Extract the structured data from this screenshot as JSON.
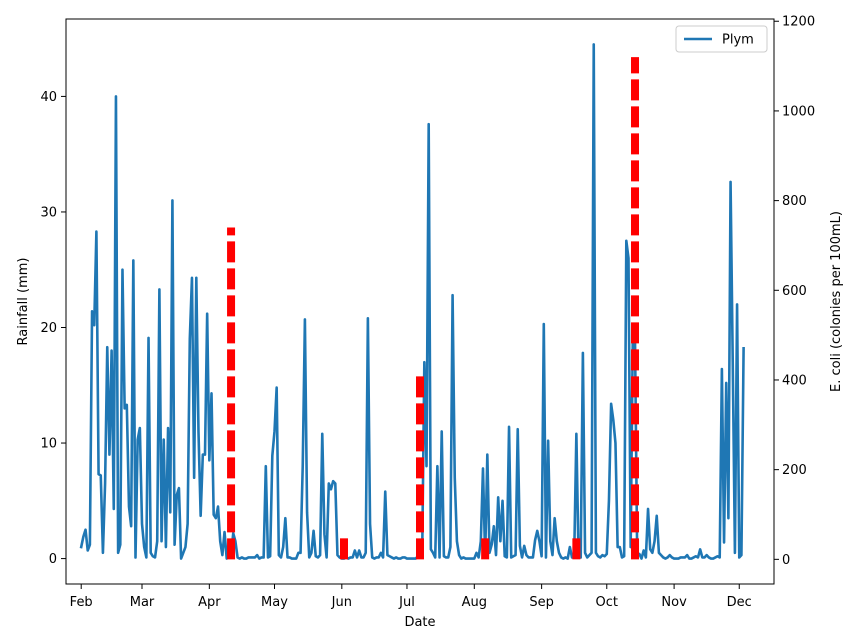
{
  "chart_data": {
    "type": "line",
    "xlabel": "Date",
    "ylabel_left": "Rainfall (mm)",
    "ylabel_right": "E. coli (colonies per 100mL)",
    "ylim_left": [
      -2.2,
      46.7
    ],
    "ylim_right": [
      -55,
      1205
    ],
    "x_range_days": [
      -7,
      319
    ],
    "month_ticks": [
      {
        "label": "Feb",
        "day": 0
      },
      {
        "label": "Mar",
        "day": 28
      },
      {
        "label": "Apr",
        "day": 59
      },
      {
        "label": "May",
        "day": 89
      },
      {
        "label": "Jun",
        "day": 120
      },
      {
        "label": "Jul",
        "day": 150
      },
      {
        "label": "Aug",
        "day": 181
      },
      {
        "label": "Sep",
        "day": 212
      },
      {
        "label": "Oct",
        "day": 242
      },
      {
        "label": "Nov",
        "day": 273
      },
      {
        "label": "Dec",
        "day": 303
      }
    ],
    "y_ticks_left": [
      0,
      10,
      20,
      30,
      40
    ],
    "y_ticks_right": [
      0,
      200,
      400,
      600,
      800,
      1000,
      1200
    ],
    "legend": {
      "position": "top-right",
      "entries": [
        "Plym"
      ]
    },
    "series": [
      {
        "name": "Plym",
        "color": "#1f77b4",
        "axis": "left",
        "points": [
          [
            0,
            1
          ],
          [
            1,
            1.9
          ],
          [
            2,
            2.5
          ],
          [
            3,
            0.7
          ],
          [
            4,
            1.2
          ],
          [
            5,
            21.4
          ],
          [
            6,
            20.2
          ],
          [
            7,
            28.3
          ],
          [
            8,
            7.3
          ],
          [
            9,
            7.2
          ],
          [
            10,
            0.5
          ],
          [
            11,
            6.5
          ],
          [
            12,
            18.3
          ],
          [
            13,
            9
          ],
          [
            14,
            18
          ],
          [
            15,
            4.3
          ],
          [
            16,
            40
          ],
          [
            17,
            0.5
          ],
          [
            18,
            1.2
          ],
          [
            19,
            25
          ],
          [
            20,
            13
          ],
          [
            21,
            13.3
          ],
          [
            22,
            4.5
          ],
          [
            23,
            2.8
          ],
          [
            24,
            25.8
          ],
          [
            25,
            0.1
          ],
          [
            26,
            10.3
          ],
          [
            27,
            11.3
          ],
          [
            28,
            3
          ],
          [
            29,
            1
          ],
          [
            30,
            0.1
          ],
          [
            31,
            19.1
          ],
          [
            32,
            0.5
          ],
          [
            33,
            0.2
          ],
          [
            34,
            0.1
          ],
          [
            35,
            1.5
          ],
          [
            36,
            23.3
          ],
          [
            37,
            1.5
          ],
          [
            38,
            10.3
          ],
          [
            39,
            1
          ],
          [
            40,
            11.3
          ],
          [
            41,
            4
          ],
          [
            42,
            31
          ],
          [
            43,
            1.2
          ],
          [
            44,
            5.5
          ],
          [
            45,
            6.1
          ],
          [
            46,
            0
          ],
          [
            47,
            0.5
          ],
          [
            48,
            1
          ],
          [
            49,
            3
          ],
          [
            50,
            19
          ],
          [
            51,
            24.3
          ],
          [
            52,
            7
          ],
          [
            53,
            24.3
          ],
          [
            54,
            11
          ],
          [
            55,
            3.7
          ],
          [
            56,
            9
          ],
          [
            57,
            9
          ],
          [
            58,
            21.2
          ],
          [
            59,
            8.5
          ],
          [
            60,
            14.3
          ],
          [
            61,
            3.8
          ],
          [
            62,
            3.5
          ],
          [
            63,
            4.5
          ],
          [
            64,
            1.5
          ],
          [
            65,
            0.3
          ],
          [
            66,
            2.3
          ],
          [
            67,
            0
          ],
          [
            68,
            1.5
          ],
          [
            69,
            0.2
          ],
          [
            70,
            2.2
          ],
          [
            71,
            1.5
          ],
          [
            72,
            0.1
          ],
          [
            73,
            0
          ],
          [
            74,
            0.1
          ],
          [
            75,
            0
          ],
          [
            76,
            0
          ],
          [
            77,
            0.1
          ],
          [
            78,
            0.1
          ],
          [
            79,
            0.1
          ],
          [
            80,
            0.1
          ],
          [
            81,
            0.3
          ],
          [
            82,
            0
          ],
          [
            83,
            0.1
          ],
          [
            84,
            0.1
          ],
          [
            85,
            8
          ],
          [
            86,
            0.1
          ],
          [
            87,
            0.2
          ],
          [
            88,
            8.9
          ],
          [
            89,
            11
          ],
          [
            90,
            14.8
          ],
          [
            91,
            0.3
          ],
          [
            92,
            0.1
          ],
          [
            93,
            1
          ],
          [
            94,
            3.5
          ],
          [
            95,
            0.1
          ],
          [
            96,
            0.1
          ],
          [
            97,
            0
          ],
          [
            98,
            0
          ],
          [
            99,
            0
          ],
          [
            100,
            0.5
          ],
          [
            101,
            0.5
          ],
          [
            102,
            8
          ],
          [
            103,
            20.7
          ],
          [
            104,
            4
          ],
          [
            105,
            0.1
          ],
          [
            106,
            0.5
          ],
          [
            107,
            2.4
          ],
          [
            108,
            0.2
          ],
          [
            109,
            0.1
          ],
          [
            110,
            0.3
          ],
          [
            111,
            10.8
          ],
          [
            112,
            2.1
          ],
          [
            113,
            0.1
          ],
          [
            114,
            6.5
          ],
          [
            115,
            6
          ],
          [
            116,
            6.7
          ],
          [
            117,
            6.5
          ],
          [
            118,
            0.3
          ],
          [
            119,
            0.1
          ],
          [
            120,
            0
          ],
          [
            121,
            0
          ],
          [
            122,
            0.1
          ],
          [
            123,
            0
          ],
          [
            124,
            0.1
          ],
          [
            125,
            0.1
          ],
          [
            126,
            0.7
          ],
          [
            127,
            0.1
          ],
          [
            128,
            0.7
          ],
          [
            129,
            0.1
          ],
          [
            130,
            0.1
          ],
          [
            131,
            0.5
          ],
          [
            132,
            20.8
          ],
          [
            133,
            3
          ],
          [
            134,
            0.1
          ],
          [
            135,
            0
          ],
          [
            136,
            0.1
          ],
          [
            137,
            0.1
          ],
          [
            138,
            0.5
          ],
          [
            139,
            0.1
          ],
          [
            140,
            5.8
          ],
          [
            141,
            0.3
          ],
          [
            142,
            0.2
          ],
          [
            143,
            0.1
          ],
          [
            144,
            0
          ],
          [
            145,
            0.1
          ],
          [
            146,
            0
          ],
          [
            147,
            0
          ],
          [
            148,
            0.1
          ],
          [
            149,
            0.1
          ],
          [
            150,
            0
          ],
          [
            151,
            0
          ],
          [
            152,
            0
          ],
          [
            153,
            0
          ],
          [
            154,
            0
          ],
          [
            155,
            0.2
          ],
          [
            156,
            0.1
          ],
          [
            157,
            0.2
          ],
          [
            158,
            17
          ],
          [
            159,
            8
          ],
          [
            160,
            37.6
          ],
          [
            161,
            0.8
          ],
          [
            162,
            0.5
          ],
          [
            163,
            0.1
          ],
          [
            164,
            8
          ],
          [
            165,
            0.1
          ],
          [
            166,
            11
          ],
          [
            167,
            0.2
          ],
          [
            168,
            0.1
          ],
          [
            169,
            0.1
          ],
          [
            170,
            1
          ],
          [
            171,
            22.8
          ],
          [
            172,
            7
          ],
          [
            173,
            1.5
          ],
          [
            174,
            0.3
          ],
          [
            175,
            0
          ],
          [
            176,
            0.1
          ],
          [
            177,
            0
          ],
          [
            178,
            0
          ],
          [
            179,
            0
          ],
          [
            180,
            0
          ],
          [
            181,
            0
          ],
          [
            182,
            0.5
          ],
          [
            183,
            0.1
          ],
          [
            184,
            1.5
          ],
          [
            185,
            7.8
          ],
          [
            186,
            0.1
          ],
          [
            187,
            9
          ],
          [
            188,
            0.5
          ],
          [
            189,
            1.2
          ],
          [
            190,
            2.8
          ],
          [
            191,
            0.3
          ],
          [
            192,
            5.3
          ],
          [
            193,
            1.5
          ],
          [
            194,
            5
          ],
          [
            195,
            0.2
          ],
          [
            196,
            0.1
          ],
          [
            197,
            11.4
          ],
          [
            198,
            0.1
          ],
          [
            199,
            0.2
          ],
          [
            200,
            0.3
          ],
          [
            201,
            11.2
          ],
          [
            202,
            1.1
          ],
          [
            203,
            0.1
          ],
          [
            204,
            1.1
          ],
          [
            205,
            0.3
          ],
          [
            206,
            0.1
          ],
          [
            207,
            0.1
          ],
          [
            208,
            0.1
          ],
          [
            209,
            1.6
          ],
          [
            210,
            2.4
          ],
          [
            211,
            1.5
          ],
          [
            212,
            0.2
          ],
          [
            213,
            20.3
          ],
          [
            214,
            0.1
          ],
          [
            215,
            10.2
          ],
          [
            216,
            1.5
          ],
          [
            217,
            0.3
          ],
          [
            218,
            3.5
          ],
          [
            219,
            1.5
          ],
          [
            220,
            0.5
          ],
          [
            221,
            0.1
          ],
          [
            222,
            0
          ],
          [
            223,
            0.1
          ],
          [
            224,
            0
          ],
          [
            225,
            1
          ],
          [
            226,
            0.1
          ],
          [
            227,
            0.2
          ],
          [
            228,
            10.8
          ],
          [
            229,
            0.1
          ],
          [
            230,
            0.1
          ],
          [
            231,
            17.8
          ],
          [
            232,
            0.5
          ],
          [
            233,
            0.1
          ],
          [
            234,
            0.3
          ],
          [
            235,
            0.5
          ],
          [
            236,
            44.5
          ],
          [
            237,
            0.5
          ],
          [
            238,
            0.2
          ],
          [
            239,
            0.1
          ],
          [
            240,
            0.3
          ],
          [
            241,
            0.2
          ],
          [
            242,
            0.4
          ],
          [
            243,
            5
          ],
          [
            244,
            13.4
          ],
          [
            245,
            12
          ],
          [
            246,
            10
          ],
          [
            247,
            1
          ],
          [
            248,
            1
          ],
          [
            249,
            0.1
          ],
          [
            250,
            0.2
          ],
          [
            251,
            27.5
          ],
          [
            252,
            26
          ],
          [
            253,
            1
          ],
          [
            254,
            19.4
          ],
          [
            255,
            19
          ],
          [
            256,
            0.3
          ],
          [
            257,
            0.4
          ],
          [
            258,
            0
          ],
          [
            259,
            0.7
          ],
          [
            260,
            0.1
          ],
          [
            261,
            4.3
          ],
          [
            262,
            0.8
          ],
          [
            263,
            0.5
          ],
          [
            264,
            1.5
          ],
          [
            265,
            3.7
          ],
          [
            266,
            0.5
          ],
          [
            267,
            0.3
          ],
          [
            268,
            0.1
          ],
          [
            269,
            0
          ],
          [
            270,
            0.1
          ],
          [
            271,
            0.3
          ],
          [
            272,
            0.1
          ],
          [
            273,
            0
          ],
          [
            274,
            0
          ],
          [
            275,
            0
          ],
          [
            276,
            0.1
          ],
          [
            277,
            0.1
          ],
          [
            278,
            0.1
          ],
          [
            279,
            0.3
          ],
          [
            280,
            0
          ],
          [
            281,
            0
          ],
          [
            282,
            0.1
          ],
          [
            283,
            0.2
          ],
          [
            284,
            0.1
          ],
          [
            285,
            0.8
          ],
          [
            286,
            0.1
          ],
          [
            287,
            0.1
          ],
          [
            288,
            0.3
          ],
          [
            289,
            0.1
          ],
          [
            290,
            0
          ],
          [
            291,
            0
          ],
          [
            292,
            0.1
          ],
          [
            293,
            0.2
          ],
          [
            294,
            0.1
          ],
          [
            295,
            16.4
          ],
          [
            296,
            1.4
          ],
          [
            297,
            15.2
          ],
          [
            298,
            3.5
          ],
          [
            299,
            32.6
          ],
          [
            300,
            17
          ],
          [
            301,
            0.5
          ],
          [
            302,
            22
          ],
          [
            303,
            0.1
          ],
          [
            304,
            0.3
          ],
          [
            305,
            18.2
          ]
        ]
      },
      {
        "name": "E. coli",
        "color": "#ff0000",
        "axis": "right",
        "style": "dashed vertical bars",
        "points": [
          [
            69,
            740
          ],
          [
            121,
            58
          ],
          [
            156,
            410
          ],
          [
            186,
            58
          ],
          [
            228,
            58
          ],
          [
            255,
            1120
          ]
        ]
      }
    ]
  }
}
